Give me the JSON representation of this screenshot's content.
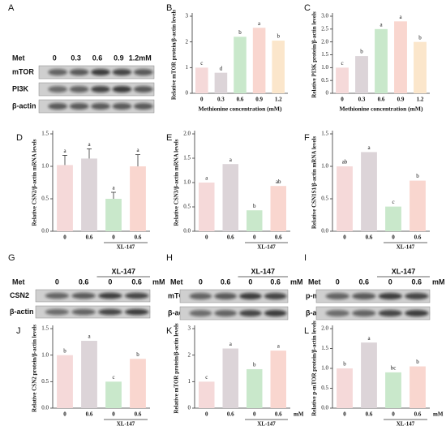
{
  "chart_data": [
    {
      "type": "bar",
      "panel": "B",
      "ylabel": "Relative mTOR protein/β-actin levels",
      "xlabel": "Methionine concentration (mM)",
      "categories": [
        "0",
        "0.3",
        "0.6",
        "0.9",
        "1.2"
      ],
      "values": [
        1.0,
        0.8,
        2.2,
        2.55,
        2.05
      ],
      "letters": [
        "c",
        "d",
        "b",
        "a",
        "b"
      ],
      "colors": [
        "#f5d9d9",
        "#dcd4d8",
        "#c9e8cb",
        "#f9d6cf",
        "#fbe6cb"
      ],
      "ylim": [
        0,
        3
      ],
      "yticks": [
        0,
        1,
        2,
        3
      ]
    },
    {
      "type": "bar",
      "panel": "C",
      "ylabel": "Relative PI3K protein/β-actin levels",
      "xlabel": "Methionine concentration (mM)",
      "categories": [
        "0",
        "0.3",
        "0.6",
        "0.9",
        "1.2"
      ],
      "values": [
        1.0,
        1.45,
        2.5,
        2.8,
        2.0
      ],
      "letters": [
        "c",
        "b",
        "a",
        "a",
        "b"
      ],
      "colors": [
        "#f5d9d9",
        "#dcd4d8",
        "#c9e8cb",
        "#f9d6cf",
        "#fbe6cb"
      ],
      "ylim": [
        0,
        3
      ],
      "yticks": [
        0,
        0.5,
        {
          "value": 1,
          "label": "1.0"
        },
        1.5,
        {
          "value": 2,
          "label": "2.0"
        },
        2.5,
        {
          "value": 3,
          "label": "3.0"
        }
      ]
    },
    {
      "type": "bar",
      "panel": "D",
      "ylabel": "Relative CSN2/β-actin mRNA levels",
      "group_label": "XL-147",
      "categories": [
        "0",
        "0.6",
        "0",
        "0.6"
      ],
      "values": [
        1.02,
        1.12,
        0.5,
        1.0
      ],
      "errors": [
        0.15,
        0.15,
        0.1,
        0.18
      ],
      "letters": [
        "a",
        "a",
        "a",
        "a"
      ],
      "colors": [
        "#f5d9d9",
        "#dcd4d8",
        "#c9e8cb",
        "#f9d6cf"
      ],
      "ylim": [
        0,
        1.5
      ],
      "yticks": [
        {
          "value": 0,
          "label": "0.0"
        },
        0.5,
        {
          "value": 1,
          "label": "1.0"
        },
        1.5
      ]
    },
    {
      "type": "bar",
      "panel": "E",
      "ylabel": "Relative CSN3/β-actin mRNA levels",
      "group_label": "XL-147",
      "categories": [
        "0",
        "0.6",
        "0",
        "0.6"
      ],
      "values": [
        1.0,
        1.38,
        0.43,
        0.93
      ],
      "letters": [
        "a",
        "a",
        "b",
        "ab"
      ],
      "colors": [
        "#f5d9d9",
        "#dcd4d8",
        "#c9e8cb",
        "#f9d6cf"
      ],
      "ylim": [
        0,
        2
      ],
      "yticks": [
        {
          "value": 0,
          "label": "0.0"
        },
        0.5,
        {
          "value": 1,
          "label": "1.0"
        },
        1.5,
        {
          "value": 2,
          "label": "2.0"
        }
      ]
    },
    {
      "type": "bar",
      "panel": "F",
      "ylabel": "Relative CSN1S1/β-actin mRNA levels",
      "group_label": "XL-147",
      "categories": [
        "0",
        "0.6",
        "0",
        "0.6"
      ],
      "values": [
        1.0,
        1.22,
        0.38,
        0.78
      ],
      "letters": [
        "ab",
        "a",
        "c",
        "b"
      ],
      "colors": [
        "#f5d9d9",
        "#dcd4d8",
        "#c9e8cb",
        "#f9d6cf"
      ],
      "ylim": [
        0,
        1.5
      ],
      "yticks": [
        {
          "value": 0,
          "label": "0.0"
        },
        0.5,
        {
          "value": 1,
          "label": "1.0"
        },
        1.5
      ]
    },
    {
      "type": "bar",
      "panel": "J",
      "ylabel": "Relative CSN2 protein/β-actin levels",
      "group_label": "XL-147",
      "categories": [
        "0",
        "0.6",
        "0",
        "0.6"
      ],
      "values": [
        1.0,
        1.27,
        0.5,
        0.93
      ],
      "letters": [
        "b",
        "a",
        "c",
        "b"
      ],
      "colors": [
        "#f5d9d9",
        "#dcd4d8",
        "#c9e8cb",
        "#f9d6cf"
      ],
      "ylim": [
        0,
        1.5
      ],
      "yticks": [
        {
          "value": 0,
          "label": "0.0"
        },
        0.5,
        {
          "value": 1,
          "label": "1.0"
        },
        1.5
      ]
    },
    {
      "type": "bar",
      "panel": "K",
      "ylabel": "Relative mTOR protein/β-actin levels",
      "group_label": "XL-147",
      "x_unit": "mM",
      "categories": [
        "0",
        "0.6",
        "0",
        "0.6"
      ],
      "values": [
        1.0,
        2.25,
        1.47,
        2.17
      ],
      "letters": [
        "c",
        "a",
        "b",
        "a"
      ],
      "colors": [
        "#f5d9d9",
        "#dcd4d8",
        "#c9e8cb",
        "#f9d6cf"
      ],
      "ylim": [
        0,
        3
      ],
      "yticks": [
        0,
        1,
        2,
        3
      ]
    },
    {
      "type": "bar",
      "panel": "L",
      "ylabel": "Relative p-mTOR protein/β-actin levels",
      "group_label": "XL-147",
      "x_unit": "mM",
      "categories": [
        "0",
        "0.6",
        "0",
        "0.6"
      ],
      "values": [
        1.0,
        1.65,
        0.9,
        1.05
      ],
      "letters": [
        "b",
        "a",
        "bc",
        "b"
      ],
      "colors": [
        "#f5d9d9",
        "#dcd4d8",
        "#c9e8cb",
        "#f9d6cf"
      ],
      "ylim": [
        0,
        2
      ],
      "yticks": [
        {
          "value": 0,
          "label": "0.0"
        },
        0.5,
        {
          "value": 1,
          "label": "1.0"
        },
        1.5,
        {
          "value": 2,
          "label": "2.0"
        }
      ]
    }
  ],
  "blots": [
    {
      "panel": "A",
      "header": "Met",
      "lanes": [
        "0",
        "0.3",
        "0.6",
        "0.9",
        "1.2mM"
      ],
      "rows": [
        "mTOR",
        "PI3K",
        "β-actin"
      ]
    },
    {
      "panel": "G",
      "header": "Met",
      "group_label": "XL-147",
      "unit": "mM",
      "lanes": [
        "0",
        "0.6",
        "0",
        "0.6"
      ],
      "rows": [
        "CSN2",
        "β-actin"
      ]
    },
    {
      "panel": "H",
      "header": "Met",
      "group_label": "XL-147",
      "unit": "mM",
      "lanes": [
        "0",
        "0.6",
        "0",
        "0.6"
      ],
      "rows": [
        "mTOR",
        "β-actin"
      ]
    },
    {
      "panel": "I",
      "header": "Met",
      "group_label": "XL-147",
      "unit": "mM",
      "lanes": [
        "0",
        "0.6",
        "0",
        "0.6"
      ],
      "rows": [
        "p-mTOR",
        "β-actin"
      ]
    }
  ]
}
